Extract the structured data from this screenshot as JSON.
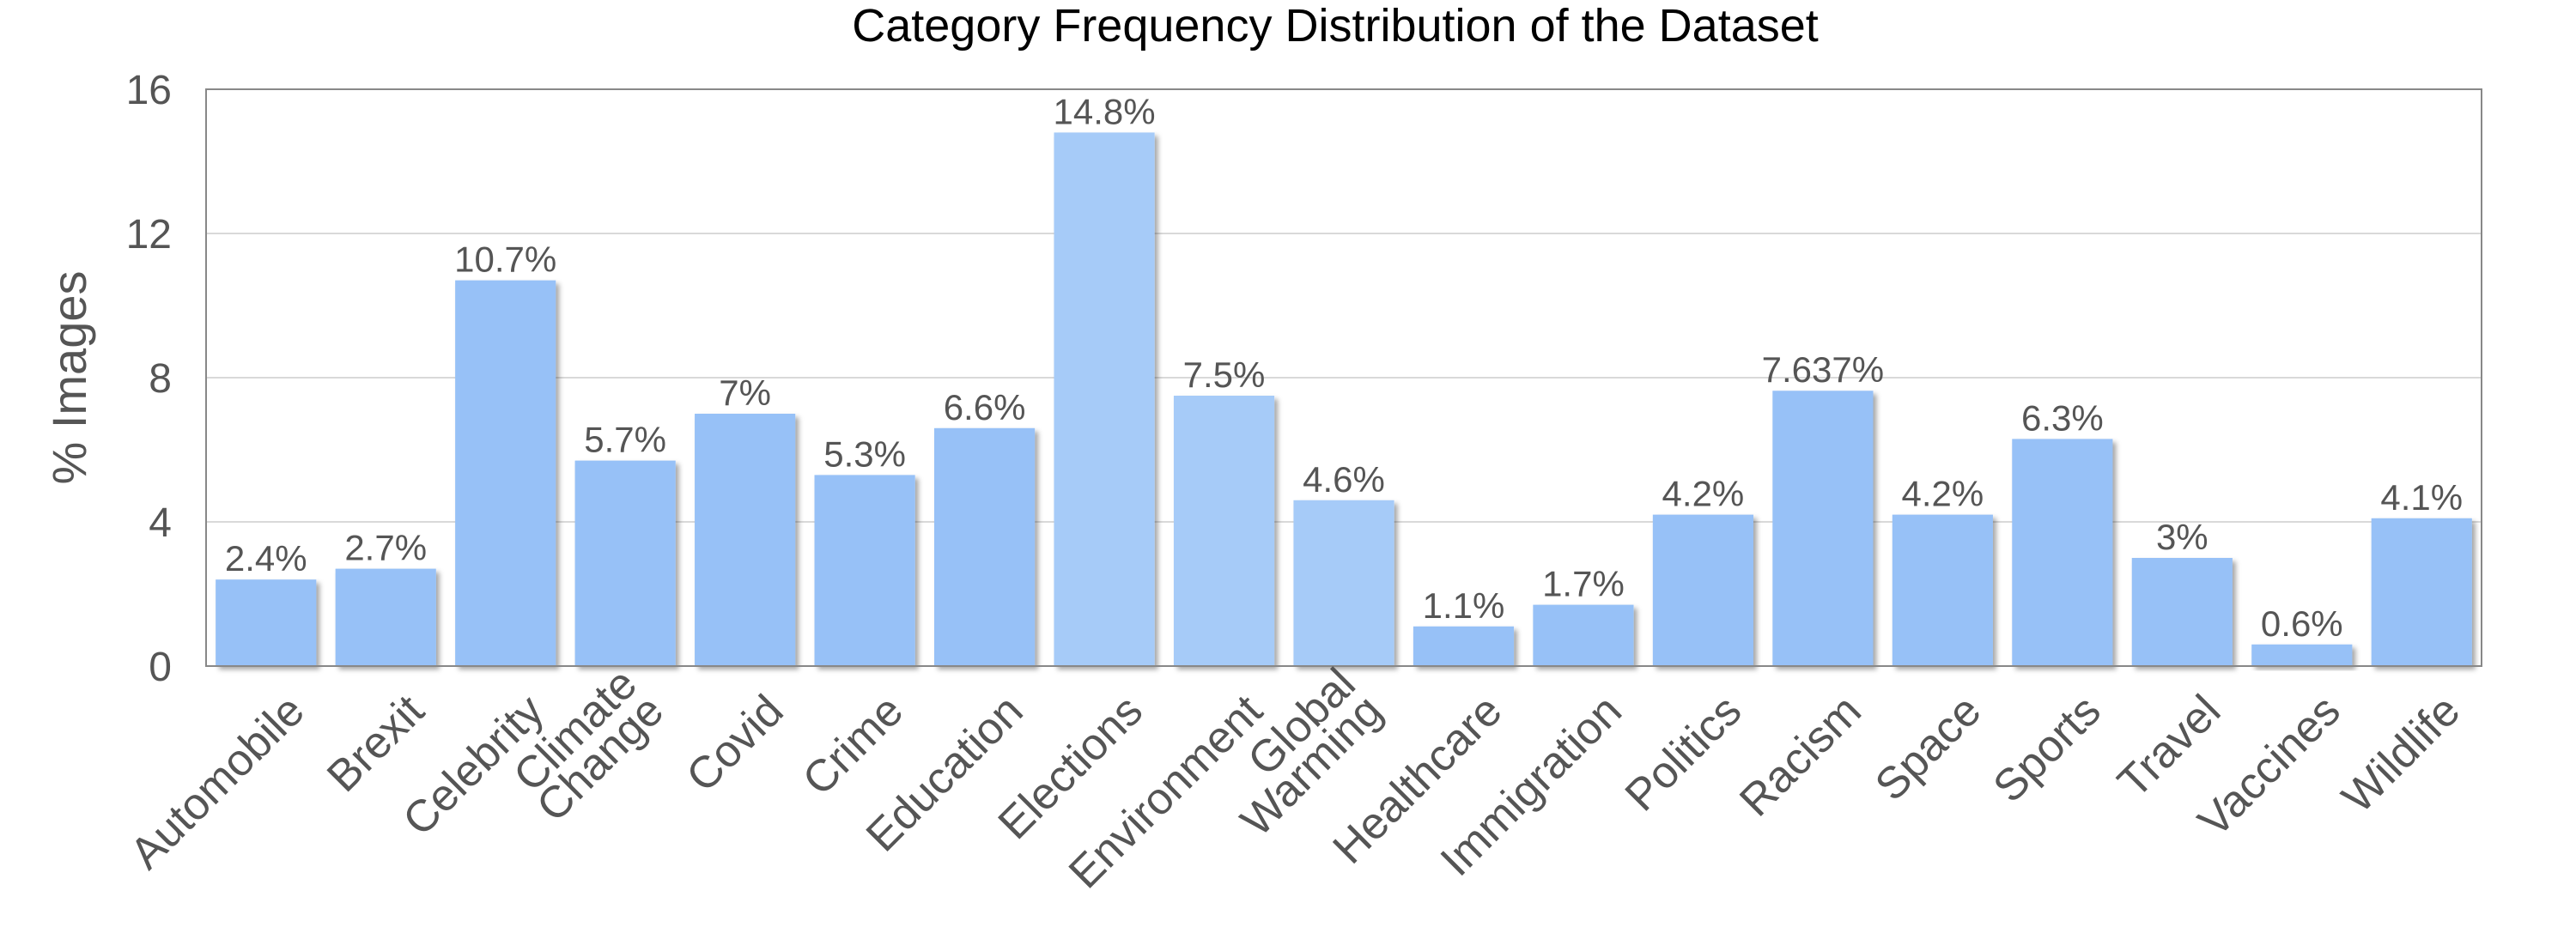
{
  "chart_data": {
    "type": "bar",
    "title": "Category Frequency Distribution of the Dataset",
    "xlabel": "",
    "ylabel": "% Images",
    "ylim": [
      0,
      16
    ],
    "yticks": [
      "0",
      "4",
      "8",
      "12",
      "16"
    ],
    "grid": true,
    "categories": [
      [
        "Automobile"
      ],
      [
        "Brexit"
      ],
      [
        "Celebrity"
      ],
      [
        "Climate",
        "Change"
      ],
      [
        "Covid"
      ],
      [
        "Crime"
      ],
      [
        "Education"
      ],
      [
        "Elections"
      ],
      [
        "Environment"
      ],
      [
        "Global",
        "Warming"
      ],
      [
        "Healthcare"
      ],
      [
        "Immigration"
      ],
      [
        "Politics"
      ],
      [
        "Racism"
      ],
      [
        "Space"
      ],
      [
        "Sports"
      ],
      [
        "Travel"
      ],
      [
        "Vaccines"
      ],
      [
        "Wildlife"
      ]
    ],
    "values": [
      2.4,
      2.7,
      10.7,
      5.7,
      7,
      5.3,
      6.6,
      14.8,
      7.5,
      4.6,
      1.1,
      1.7,
      4.2,
      7.637,
      4.2,
      6.3,
      3,
      0.6,
      4.1
    ],
    "data_labels": [
      "2.4%",
      "2.7%",
      "10.7%",
      "5.7%",
      "7%",
      "5.3%",
      "6.6%",
      "14.8%",
      "7.5%",
      "4.6%",
      "1.1%",
      "1.7%",
      "4.2%",
      "7.637%",
      "4.2%",
      "6.3%",
      "3%",
      "0.6%",
      "4.1%"
    ],
    "bar_colors": [
      "#97c1f7",
      "#97c1f7",
      "#97c1f7",
      "#97c1f7",
      "#97c1f7",
      "#97c1f7",
      "#97c1f7",
      "#a6cbf8",
      "#a6cbf8",
      "#a6cbf8",
      "#97c1f7",
      "#97c1f7",
      "#97c1f7",
      "#97c1f7",
      "#97c1f7",
      "#97c1f7",
      "#97c1f7",
      "#97c1f7",
      "#97c1f7"
    ]
  }
}
